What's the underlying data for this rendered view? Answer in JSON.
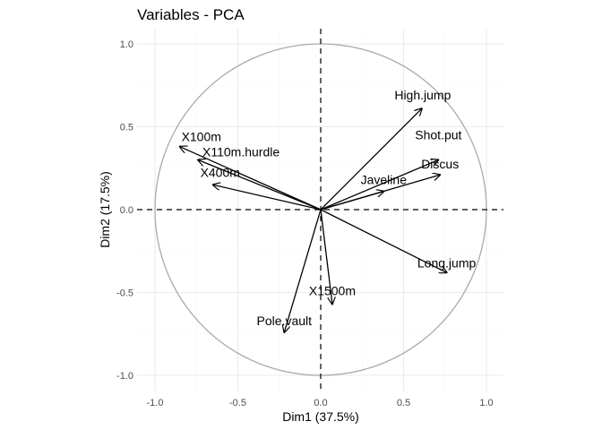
{
  "chart_data": {
    "type": "scatter",
    "subtype": "pca-variable-correlation-circle",
    "title": "Variables - PCA",
    "xlabel": "Dim1 (37.5%)",
    "ylabel": "Dim2 (17.5%)",
    "xlim": [
      -1.0,
      1.0
    ],
    "ylim": [
      -1.0,
      1.0
    ],
    "xticks": [
      "-1.0",
      "-0.5",
      "0.0",
      "0.5",
      "1.0"
    ],
    "yticks": [
      "-1.0",
      "-0.5",
      "0.0",
      "0.5",
      "1.0"
    ],
    "grid": true,
    "circle_radius": 1.0,
    "reference_lines": "dashed at x=0 and y=0",
    "variables": [
      {
        "name": "X100m",
        "x": -0.85,
        "y": 0.38
      },
      {
        "name": "X110m.hurdle",
        "x": -0.74,
        "y": 0.3
      },
      {
        "name": "X400m",
        "x": -0.65,
        "y": 0.15
      },
      {
        "name": "High.jump",
        "x": 0.61,
        "y": 0.61
      },
      {
        "name": "Shot.put",
        "x": 0.71,
        "y": 0.3
      },
      {
        "name": "Discus",
        "x": 0.72,
        "y": 0.21
      },
      {
        "name": "Javeline",
        "x": 0.38,
        "y": 0.11
      },
      {
        "name": "Long.jump",
        "x": 0.76,
        "y": -0.38
      },
      {
        "name": "X1500m",
        "x": 0.07,
        "y": -0.57
      },
      {
        "name": "Pole.vault",
        "x": -0.22,
        "y": -0.74
      }
    ]
  }
}
